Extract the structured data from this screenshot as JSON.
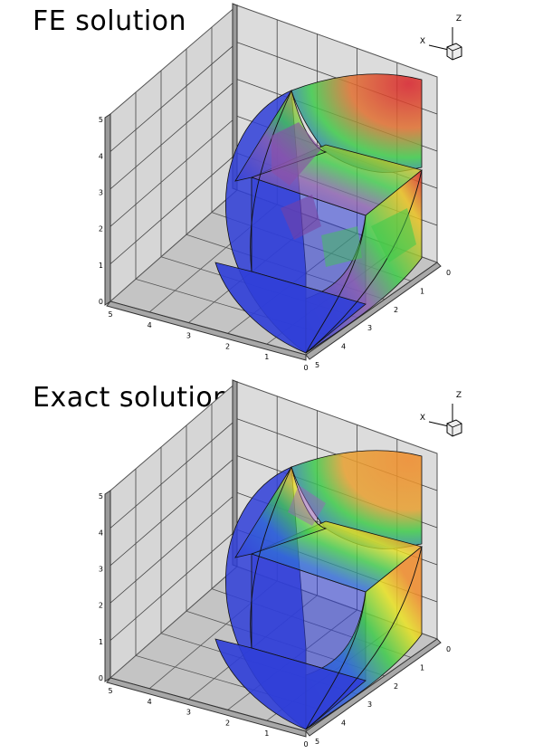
{
  "panels": [
    {
      "id": "fe",
      "title": "FE solution",
      "triad": {
        "axis1": "Z",
        "axis2": "X"
      },
      "ticks": {
        "vertical": [
          "5",
          "4",
          "3",
          "2",
          "1",
          "0"
        ],
        "left_depth": [
          "5",
          "4",
          "3",
          "2",
          "1",
          "0"
        ],
        "right_depth": [
          "0",
          "1",
          "2",
          "3",
          "4",
          "5"
        ]
      }
    },
    {
      "id": "exact",
      "title": "Exact solution",
      "triad": {
        "axis1": "Z",
        "axis2": "X"
      },
      "ticks": {
        "vertical": [
          "5",
          "4",
          "3",
          "2",
          "1",
          "0"
        ],
        "left_depth": [
          "5",
          "4",
          "3",
          "2",
          "1",
          "0"
        ],
        "right_depth": [
          "0",
          "1",
          "2",
          "3",
          "4",
          "5"
        ]
      }
    }
  ],
  "colors": {
    "high": "#d8202a",
    "mid_high": "#f08a28",
    "mid": "#e8e020",
    "mid_low": "#3ecb4a",
    "low": "#2f3ed8",
    "wall": "#d6d6d6",
    "floor": "#c4c4c4",
    "edge": "#000000"
  }
}
